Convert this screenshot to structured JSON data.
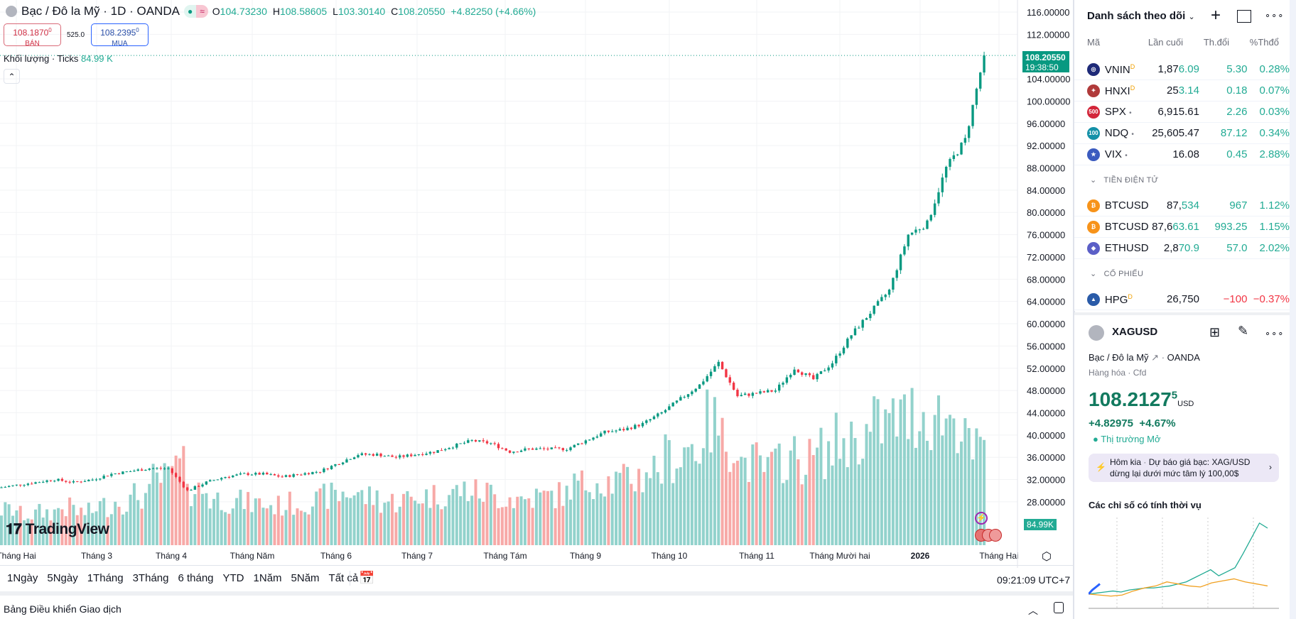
{
  "header": {
    "title": "Bạc / Đô la Mỹ · 1D · OANDA",
    "o_label": "O",
    "o": "104.73230",
    "h_label": "H",
    "h": "108.58605",
    "l_label": "L",
    "l": "103.30140",
    "c_label": "C",
    "c": "108.20550",
    "change": "+4.82250 (+4.66%)",
    "badge_icon": "≈"
  },
  "trade": {
    "sell_price": "108.1870",
    "sell_sup": "0",
    "sell_label": "BÁN",
    "spread": "525.0",
    "buy_price": "108.2395",
    "buy_sup": "0",
    "buy_label": "MUA"
  },
  "volume_legend": {
    "label": "Khối lượng · Ticks",
    "value": "84.99 K"
  },
  "price_label": {
    "price": "108.20550",
    "countdown": "19:38:50"
  },
  "volume_label": "84.99K",
  "logo": "TradingView",
  "colors": {
    "up": "#089981",
    "down": "#f23645",
    "vol_up": "#92d2cc",
    "vol_down": "#f7a9a7",
    "accent": "#22ab94"
  },
  "chart_data": {
    "type": "candlestick",
    "symbol": "XAGUSD",
    "ylim": [
      26,
      118
    ],
    "y_ticks": [
      "116.00000",
      "112.00000",
      "104.00000",
      "100.00000",
      "96.00000",
      "92.00000",
      "88.00000",
      "84.00000",
      "80.00000",
      "76.00000",
      "72.00000",
      "68.00000",
      "64.00000",
      "60.00000",
      "56.00000",
      "52.00000",
      "48.00000",
      "44.00000",
      "40.00000",
      "36.00000",
      "32.00000",
      "28.00000"
    ],
    "x_ticks": [
      "Tháng Hai",
      "Tháng 3",
      "Tháng 4",
      "Tháng Năm",
      "Tháng 6",
      "Tháng 7",
      "Tháng Tám",
      "Tháng 9",
      "Tháng 10",
      "Tháng 11",
      "Tháng Mười hai",
      "2026",
      "Tháng Hai"
    ],
    "weekly_close": [
      30.5,
      31,
      31.5,
      32,
      31.5,
      32,
      33,
      33.5,
      34,
      34,
      30,
      31.5,
      32.5,
      33,
      33,
      32.5,
      33,
      33.5,
      35,
      36.5,
      36.5,
      36,
      36.5,
      37,
      38,
      39,
      38.5,
      37,
      37.5,
      37.5,
      37.5,
      39,
      40.5,
      41,
      42,
      44,
      46.5,
      49,
      53,
      47,
      47.5,
      48,
      52,
      50,
      53,
      58,
      62,
      66,
      76,
      78,
      88,
      93,
      108.2055
    ],
    "weekly_volume_k": [
      30,
      32,
      28,
      30,
      34,
      30,
      36,
      40,
      45,
      60,
      70,
      50,
      42,
      40,
      38,
      36,
      38,
      40,
      45,
      48,
      44,
      40,
      42,
      45,
      46,
      50,
      48,
      44,
      42,
      44,
      46,
      55,
      60,
      58,
      62,
      70,
      80,
      90,
      110,
      95,
      75,
      70,
      80,
      78,
      85,
      95,
      100,
      110,
      115,
      120,
      118,
      115,
      84.99
    ]
  },
  "time_axis": {
    "time": "09:21:09 UTC+7"
  },
  "timeframes": [
    "1Ngày",
    "5Ngày",
    "1Tháng",
    "3Tháng",
    "6 tháng",
    "YTD",
    "1Năm",
    "5Năm",
    "Tất cả"
  ],
  "bottom_panel": {
    "title": "Bảng Điều khiển Giao dịch"
  },
  "watchlist": {
    "title": "Danh sách theo dõi",
    "columns": [
      "Mã",
      "Lần cuối",
      "Th.đổi",
      "%Thđổ"
    ],
    "groups": [
      {
        "name": "",
        "rows": [
          {
            "sym": "VNIN",
            "flag": "D",
            "last_a": "1,87",
            "last_b": "6.09",
            "chg": "5.30",
            "pct": "0.28%",
            "color": "#1e2a78",
            "icon": "◎"
          },
          {
            "sym": "HNXI",
            "flag": "D",
            "last_a": "25",
            "last_b": "3.14",
            "chg": "0.18",
            "pct": "0.07%",
            "color": "#b03a3a",
            "icon": "✦"
          },
          {
            "sym": "SPX",
            "flag": "•",
            "last_a": "6,915.61",
            "last_b": "",
            "chg": "2.26",
            "pct": "0.03%",
            "color": "#d3263a",
            "icon": "500"
          },
          {
            "sym": "NDQ",
            "flag": "•",
            "last_a": "25,605.47",
            "last_b": "",
            "chg": "87.12",
            "pct": "0.34%",
            "color": "#1591a8",
            "icon": "100"
          },
          {
            "sym": "VIX",
            "flag": "•",
            "last_a": "16.08",
            "last_b": "",
            "chg": "0.45",
            "pct": "2.88%",
            "color": "#3b5bbf",
            "icon": "★"
          }
        ]
      },
      {
        "name": "TIỀN ĐIỆN TỬ",
        "rows": [
          {
            "sym": "BTCUSD",
            "flag": "",
            "last_a": "87,",
            "last_b": "534",
            "chg": "967",
            "pct": "1.12%",
            "color": "#f7931a",
            "icon": "₿"
          },
          {
            "sym": "BTCUSD",
            "flag": "",
            "last_a": "87,6",
            "last_b": "63.61",
            "chg": "993.25",
            "pct": "1.15%",
            "color": "#f7931a",
            "icon": "₿"
          },
          {
            "sym": "ETHUSD",
            "flag": "",
            "last_a": "2,8",
            "last_b": "70.9",
            "chg": "57.0",
            "pct": "2.02%",
            "color": "#5b5fc7",
            "icon": "◆"
          }
        ]
      },
      {
        "name": "CỔ PHIẾU",
        "rows": [
          {
            "sym": "HPG",
            "flag": "D",
            "last_a": "26,750",
            "last_b": "",
            "chg": "−100",
            "pct": "−0.37%",
            "color": "#2a5ba8",
            "icon": "▲",
            "neg": true
          }
        ]
      }
    ]
  },
  "details": {
    "symbol": "XAGUSD",
    "name": "Bạc / Đô la Mỹ",
    "exchange": "OANDA",
    "type": "Hàng hóa",
    "sub": "Cfd",
    "price": "108.2127",
    "price_sup": "5",
    "currency": "USD",
    "change": "+4.82975",
    "change_pct": "+4.67%",
    "market_status": "Thị trường Mở",
    "news_time": "Hôm kia",
    "news": "Dự báo giá bạc: XAG/USD dừng lại dưới mức tâm lý 100,00$",
    "seasonal_title": "Các chỉ số có tính thời vụ",
    "seasonal": {
      "green": [
        0,
        1,
        2,
        3,
        2,
        4,
        5,
        6,
        6,
        7,
        8,
        10,
        12,
        16,
        20,
        24,
        18,
        22,
        26,
        40,
        55,
        70,
        65
      ],
      "orange": [
        0,
        -1,
        -2,
        -1,
        3,
        6,
        8,
        12,
        10,
        8,
        7,
        11,
        13,
        15,
        12,
        10,
        8
      ],
      "blue": [
        0,
        4,
        7,
        10
      ]
    }
  }
}
